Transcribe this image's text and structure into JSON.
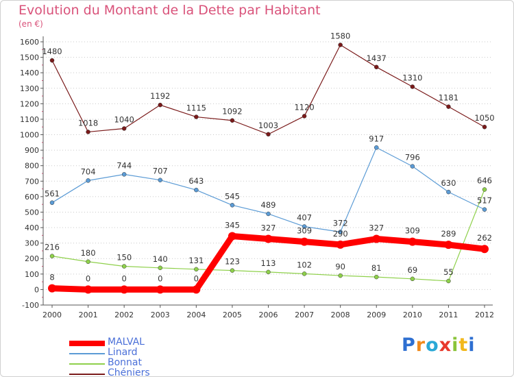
{
  "title": "Evolution du Montant de la Dette par Habitant",
  "subtitle": "(en €)",
  "logo": {
    "text": "Proxiti",
    "letter_colors": [
      "#2e6fd1",
      "#f08a1c",
      "#2aa8d6",
      "#e8392c",
      "#8ac43a",
      "#f2b81c",
      "#2e6fd1"
    ]
  },
  "chart_data": {
    "type": "line",
    "title": "Evolution du Montant de la Dette par Habitant",
    "ylabel": "(en €)",
    "x": [
      "2000",
      "2001",
      "2002",
      "2003",
      "2004",
      "2005",
      "2006",
      "2007",
      "2008",
      "2009",
      "2010",
      "2011",
      "2012"
    ],
    "ylim": [
      -100,
      1600
    ],
    "yticks": [
      -100,
      0,
      100,
      200,
      300,
      400,
      500,
      600,
      700,
      800,
      900,
      1000,
      1100,
      1200,
      1300,
      1400,
      1500,
      1600
    ],
    "grid": "horizontal dotted",
    "legend_position": "bottom-left",
    "series": [
      {
        "name": "MALVAL",
        "values": [
          8,
          0,
          0,
          0,
          0,
          345,
          327,
          309,
          290,
          327,
          309,
          289,
          262
        ],
        "color": "#ff0000",
        "bold": true
      },
      {
        "name": "Linard",
        "values": [
          561,
          704,
          744,
          707,
          643,
          545,
          489,
          407,
          372,
          917,
          796,
          630,
          517
        ],
        "color": "#5b9bd5"
      },
      {
        "name": "Bonnat",
        "values": [
          216,
          180,
          150,
          140,
          131,
          123,
          113,
          102,
          90,
          81,
          69,
          55,
          646
        ],
        "color": "#8ed04a"
      },
      {
        "name": "Chéniers",
        "values": [
          1480,
          1018,
          1040,
          1192,
          1115,
          1092,
          1003,
          1120,
          1580,
          1437,
          1310,
          1181,
          1050
        ],
        "color": "#7a1a1a"
      }
    ]
  }
}
